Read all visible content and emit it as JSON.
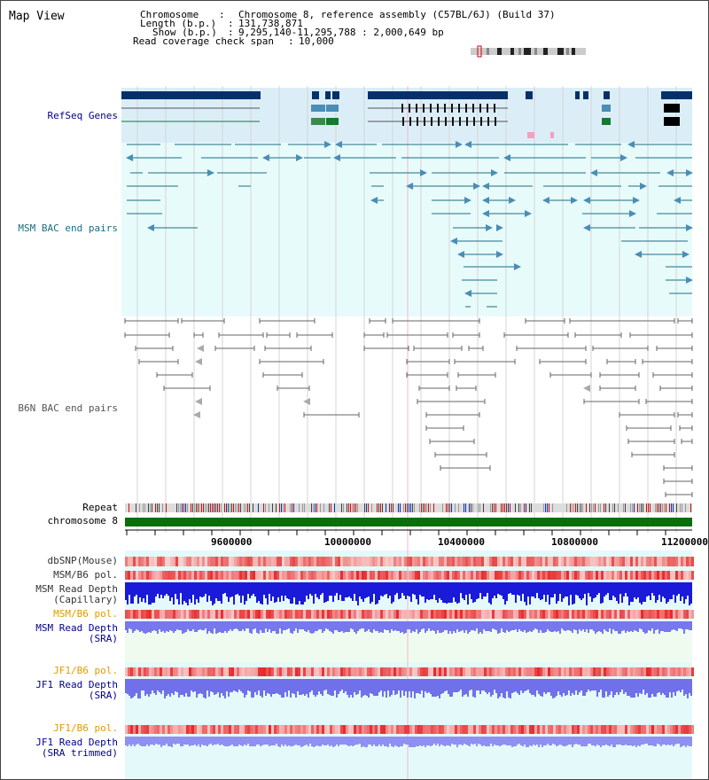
{
  "view_title": "Map View",
  "info": {
    "chromosome_label": "Chromosome",
    "chromosome_value": "Chromosome 8, reference assembly (C57BL/6J) (Build 37)",
    "length_label": "Length (b.p.)",
    "length_value": "131,738,871",
    "show_label": "Show (b.p.)",
    "show_value": "9,295,140-11,295,788 : 2,000,649 bp",
    "coverage_label": "Read coverage check span",
    "coverage_value": "10,000"
  },
  "tracks": {
    "refseq": "RefSeq Genes",
    "msm_bac": "MSM BAC end pairs",
    "b6n_bac": "B6N BAC end pairs",
    "repeat": "Repeat",
    "chromosome": "chromosome 8",
    "dbsnp": "dbSNP(Mouse)",
    "msm_pol": "MSM/B6 pol.",
    "msm_depth_cap_1": "MSM Read Depth",
    "msm_depth_cap_2": "(Capillary)",
    "msm_pol_2": "MSM/B6 pol.",
    "msm_depth_sra_1": "MSM Read Depth",
    "msm_depth_sra_2": "(SRA)",
    "jf1_pol": "JF1/B6 pol.",
    "jf1_depth_1": "JF1 Read Depth",
    "jf1_depth_2": "(SRA)",
    "jf1_pol_2": "JF1/B6 pol.",
    "jf1_trim_1": "JF1 Read Depth",
    "jf1_trim_2": "(SRA trimmed)"
  },
  "axis": {
    "ticks": [
      "9600000",
      "10000000",
      "10400000",
      "10800000",
      "11200000"
    ]
  },
  "colors": {
    "refseq_bg": "#dbeef8",
    "msm_bg": "#e8fbfb",
    "gene_dark": "#06306a",
    "gene_mid": "#4a8db6",
    "gene_green": "#147a2e",
    "msm_line": "#1a6e82",
    "b6n_line": "#666666",
    "chromosome": "#0a6e0a",
    "label_blue": "#00008b",
    "label_orange": "#e39a00",
    "label_teal": "#1a6e82",
    "label_gray": "#555555"
  }
}
